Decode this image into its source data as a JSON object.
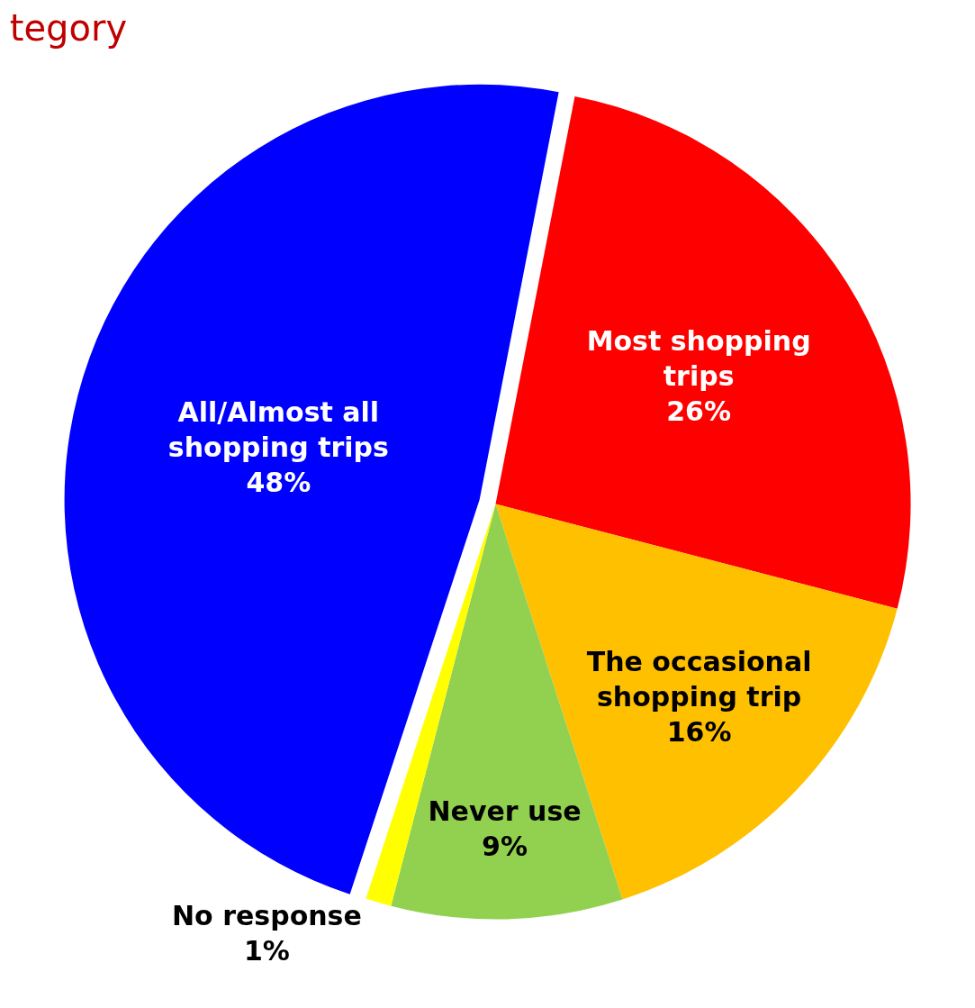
{
  "chart_data": {
    "type": "pie",
    "title": "tegory",
    "categories": [
      "Most shopping trips",
      "The occasional shopping trip",
      "Never use",
      "No response",
      "All/Almost all shopping trips"
    ],
    "values": [
      26,
      16,
      9,
      1,
      48
    ],
    "colors": [
      "#ff0000",
      "#ffc000",
      "#92d050",
      "#ffff00",
      "#0000ff"
    ],
    "value_labels": [
      "26%",
      "16%",
      "9%",
      "1%",
      "48%"
    ],
    "legend": false
  }
}
